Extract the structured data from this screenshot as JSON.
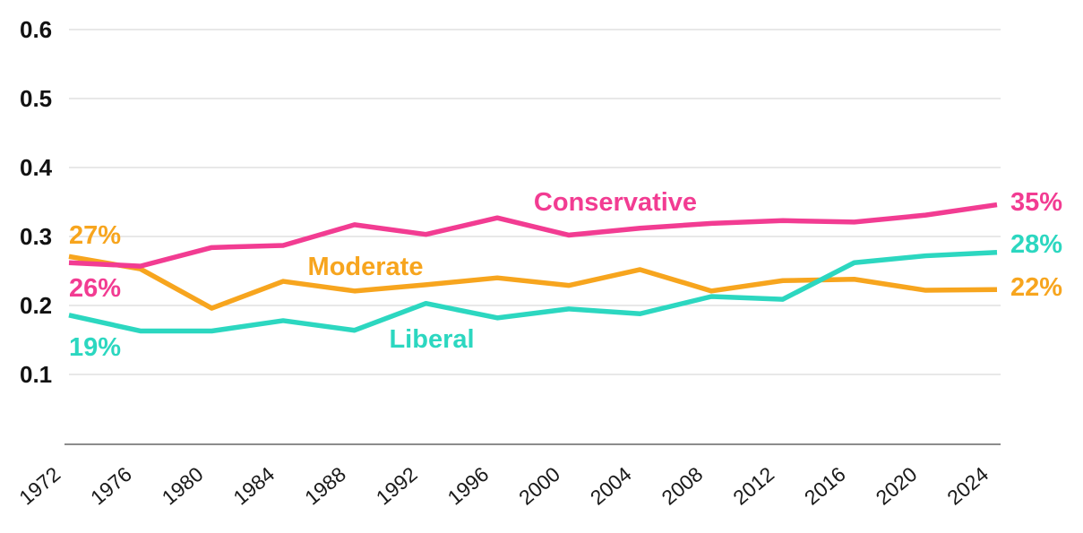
{
  "chart_data": {
    "type": "line",
    "x": [
      1972,
      1976,
      1980,
      1984,
      1988,
      1992,
      1996,
      2000,
      2004,
      2008,
      2012,
      2016,
      2020,
      2024
    ],
    "series": [
      {
        "name": "Conservative",
        "color": "#F23C92",
        "start_label": "26%",
        "end_label": "35%",
        "values": [
          0.262,
          0.257,
          0.284,
          0.287,
          0.317,
          0.303,
          0.327,
          0.302,
          0.312,
          0.319,
          0.323,
          0.321,
          0.331,
          0.346
        ]
      },
      {
        "name": "Moderate",
        "color": "#F7A51E",
        "start_label": "27%",
        "end_label": "22%",
        "values": [
          0.271,
          0.253,
          0.196,
          0.235,
          0.221,
          0.23,
          0.24,
          0.229,
          0.252,
          0.221,
          0.236,
          0.238,
          0.222,
          0.223
        ]
      },
      {
        "name": "Liberal",
        "color": "#2CD7C0",
        "start_label": "19%",
        "end_label": "28%",
        "values": [
          0.186,
          0.163,
          0.163,
          0.178,
          0.164,
          0.203,
          0.182,
          0.195,
          0.188,
          0.213,
          0.209,
          0.262,
          0.272,
          0.277
        ]
      }
    ],
    "yticks": [
      0.1,
      0.2,
      0.3,
      0.4,
      0.5,
      0.6
    ],
    "ytick_labels": [
      "0.1",
      "0.2",
      "0.3",
      "0.4",
      "0.5",
      "0.6"
    ],
    "ylim": [
      0,
      0.6
    ],
    "grid": true,
    "legend": "inline-labels",
    "title": "",
    "xlabel": "",
    "ylabel": ""
  },
  "colors": {
    "grid": "#dbdbdb",
    "axis": "#8c8c8c",
    "background": "#ffffff",
    "tick_text": "#121212"
  }
}
